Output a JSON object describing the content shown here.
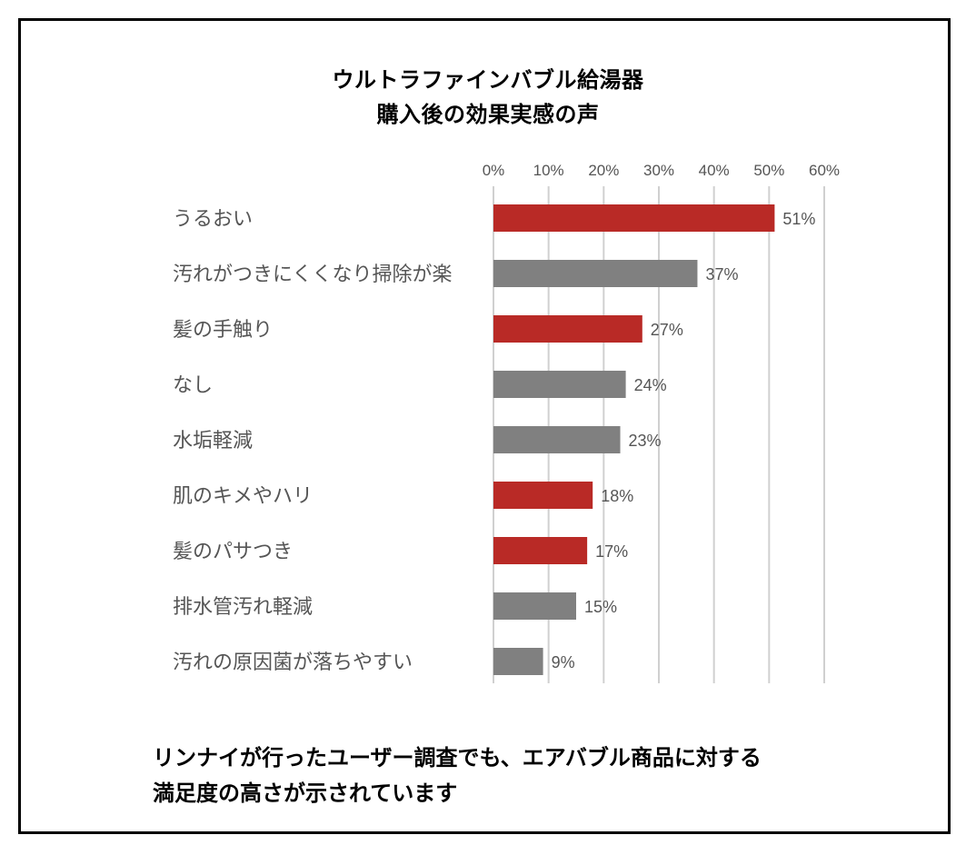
{
  "title_lines": [
    "ウルトラファインバブル給湯器",
    "購入後の効果実感の声"
  ],
  "footer_lines": [
    "リンナイが行ったユーザー調査でも、エアバブル商品に対する",
    "満足度の高さが示されています"
  ],
  "colors": {
    "highlight": "#b92a26",
    "neutral": "#808080",
    "grid": "#d0d0d0",
    "label_text": "#555555"
  },
  "chart_data": {
    "type": "bar",
    "orientation": "horizontal",
    "title": "ウルトラファインバブル給湯器 購入後の効果実感の声",
    "xlabel": "",
    "ylabel": "",
    "xlim": [
      0,
      60
    ],
    "tick_values": [
      0,
      10,
      20,
      30,
      40,
      50,
      60
    ],
    "tick_labels": [
      "0%",
      "10%",
      "20%",
      "30%",
      "40%",
      "50%",
      "60%"
    ],
    "axis_position": "top",
    "grid": true,
    "legend": "none",
    "categories": [
      "うるおい",
      "汚れがつきにくくなり掃除が楽",
      "髪の手触り",
      "なし",
      "水垢軽減",
      "肌のキメやハリ",
      "髪のパサつき",
      "排水管汚れ軽減",
      "汚れの原因菌が落ちやすい"
    ],
    "values": [
      51,
      37,
      27,
      24,
      23,
      18,
      17,
      15,
      9
    ],
    "value_labels": [
      "51%",
      "37%",
      "27%",
      "24%",
      "23%",
      "18%",
      "17%",
      "15%",
      "9%"
    ],
    "highlighted": [
      true,
      false,
      true,
      false,
      false,
      true,
      true,
      false,
      false
    ]
  }
}
